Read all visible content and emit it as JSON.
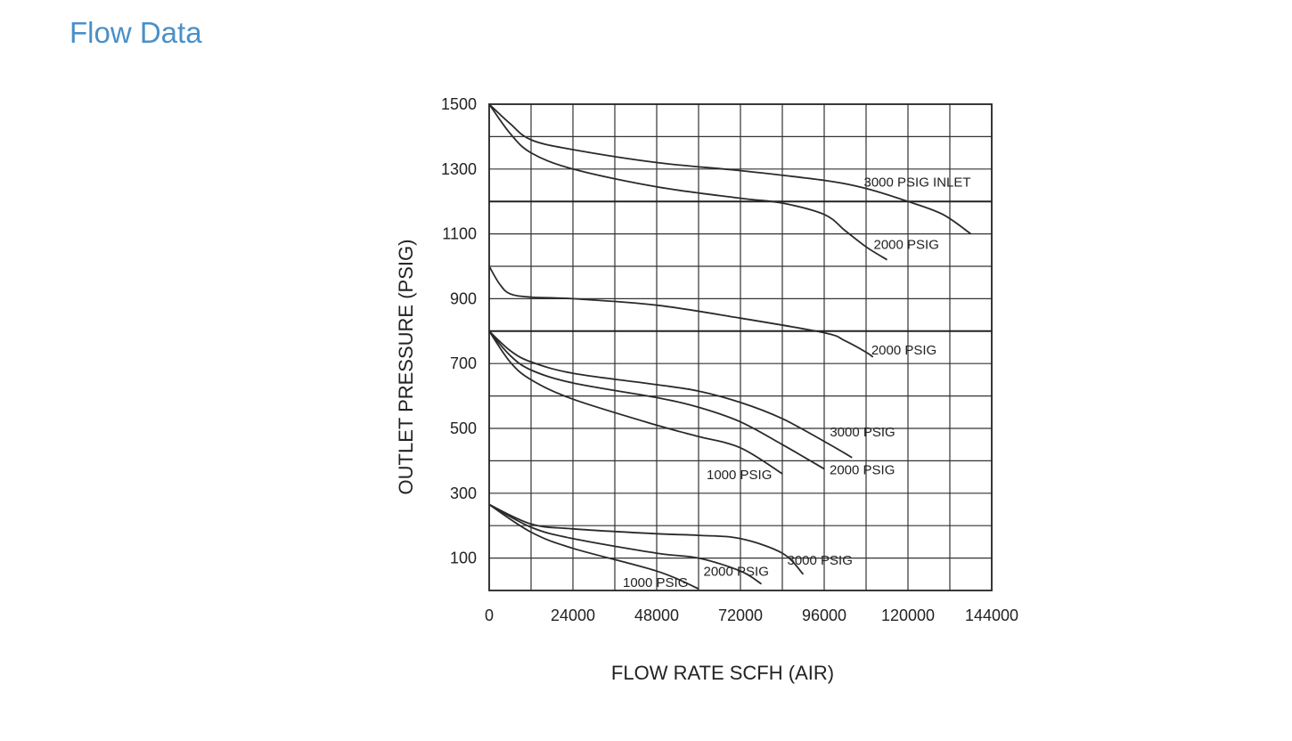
{
  "page": {
    "title": "Flow Data"
  },
  "chart_data": {
    "type": "line",
    "title": "",
    "xlabel": "FLOW  RATE  SCFH (AIR)",
    "ylabel": "OUTLET  PRESSURE (PSIG)",
    "xlim": [
      0,
      144000
    ],
    "ylim": [
      0,
      1500
    ],
    "xticks": [
      0,
      24000,
      48000,
      72000,
      96000,
      120000,
      144000
    ],
    "yticks": [
      100,
      300,
      500,
      700,
      900,
      1100,
      1300,
      1500
    ],
    "grid": true,
    "major_grid_y": [
      1200,
      800
    ],
    "series": [
      {
        "name": "3000  PSIG INLET",
        "x": [
          0,
          6000,
          12000,
          24000,
          48000,
          72000,
          96000,
          108000,
          120000,
          130000,
          138000
        ],
        "y": [
          1500,
          1440,
          1390,
          1360,
          1320,
          1295,
          1265,
          1240,
          1200,
          1160,
          1100
        ]
      },
      {
        "name": "2000  PSIG",
        "x": [
          0,
          6000,
          12000,
          24000,
          48000,
          72000,
          84000,
          96000,
          102000,
          108000,
          114000
        ],
        "y": [
          1500,
          1410,
          1350,
          1300,
          1245,
          1210,
          1195,
          1160,
          1110,
          1060,
          1020
        ]
      },
      {
        "name": "2000  PSIG",
        "x": [
          0,
          3000,
          6000,
          12000,
          24000,
          48000,
          72000,
          96000,
          102000,
          108000,
          110000
        ],
        "y": [
          1000,
          945,
          915,
          905,
          900,
          880,
          840,
          795,
          770,
          735,
          720
        ]
      },
      {
        "name": "3000  PSIG",
        "x": [
          0,
          6000,
          12000,
          24000,
          48000,
          60000,
          72000,
          84000,
          96000,
          104000
        ],
        "y": [
          800,
          740,
          705,
          670,
          635,
          615,
          580,
          530,
          460,
          410
        ]
      },
      {
        "name": "2000  PSIG",
        "x": [
          0,
          6000,
          12000,
          24000,
          48000,
          60000,
          72000,
          84000,
          96000
        ],
        "y": [
          800,
          725,
          680,
          640,
          595,
          565,
          520,
          450,
          375
        ]
      },
      {
        "name": "1000  PSIG",
        "x": [
          0,
          6000,
          12000,
          24000,
          48000,
          60000,
          72000,
          84000
        ],
        "y": [
          800,
          705,
          650,
          590,
          510,
          475,
          440,
          360
        ]
      },
      {
        "name": "3000  PSIG",
        "x": [
          0,
          12000,
          24000,
          48000,
          60000,
          72000,
          84000,
          90000
        ],
        "y": [
          265,
          205,
          190,
          175,
          170,
          160,
          115,
          50
        ]
      },
      {
        "name": "2000  PSIG",
        "x": [
          0,
          12000,
          24000,
          48000,
          60000,
          72000,
          78000
        ],
        "y": [
          265,
          195,
          160,
          115,
          100,
          60,
          20
        ]
      },
      {
        "name": "1000  PSIG",
        "x": [
          0,
          12000,
          24000,
          48000,
          60000
        ],
        "y": [
          265,
          180,
          130,
          60,
          5
        ]
      }
    ]
  }
}
